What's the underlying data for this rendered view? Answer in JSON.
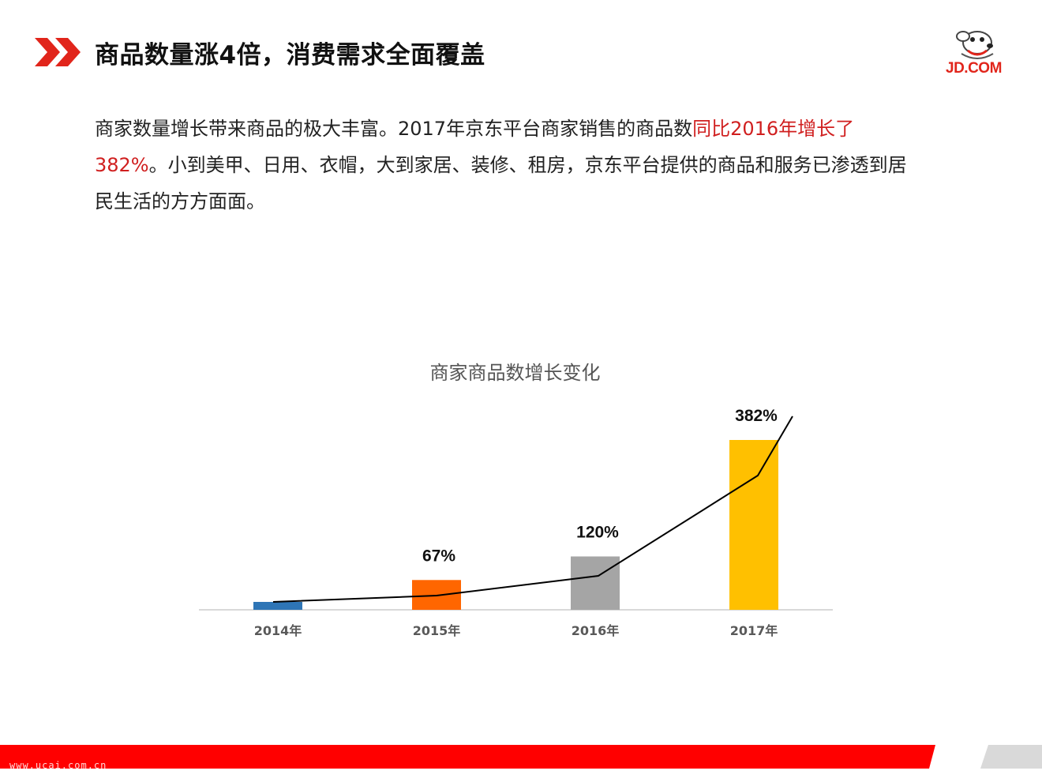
{
  "header": {
    "title": "商品数量涨4倍，消费需求全面覆盖",
    "logo_text": "JD.COM",
    "icon": "double-chevron-right-icon",
    "logo_icon": "jd-dog-mascot-icon"
  },
  "paragraph": {
    "part1": "商家数量增长带来商品的极大丰富。2017年京东平台商家销售的商品数",
    "highlight1": "同比2016年增长了",
    "highlight2": "382%",
    "part2": "。小到美甲、日用、衣帽，大到家居、装修、租房，京东平台提供的商品和服务已渗透到居民生活的方方面面。"
  },
  "chart_data": {
    "type": "bar",
    "title": "商家商品数增长变化",
    "categories": [
      "2014年",
      "2015年",
      "2016年",
      "2017年"
    ],
    "values": [
      0,
      67,
      120,
      382
    ],
    "data_labels": [
      "",
      "67%",
      "120%",
      "382%"
    ],
    "colors": [
      "#2e75b6",
      "#ff6600",
      "#a5a5a5",
      "#ffc000"
    ],
    "trend_line": true,
    "xlabel": "",
    "ylabel": "",
    "grid": false,
    "legend": "none"
  },
  "colors": {
    "brand_red": "#e1251b",
    "highlight_red": "#d01f1f",
    "footer_gray": "#d9d9d9"
  },
  "footer": {
    "watermark": "www.ucai.com.cn"
  }
}
